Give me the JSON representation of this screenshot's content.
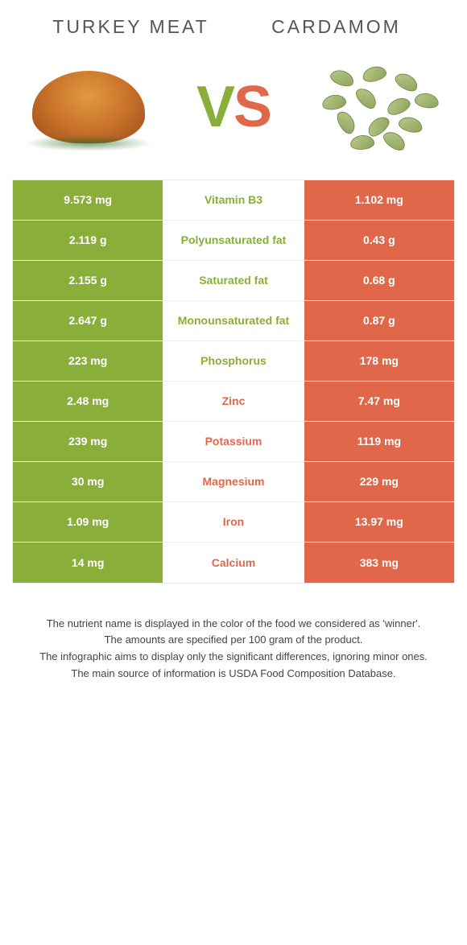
{
  "titles": {
    "left": "TURKEY MEAT",
    "right": "CARDAMOM"
  },
  "vs": {
    "v": "V",
    "s": "S"
  },
  "colors": {
    "left": "#8aae3a",
    "right": "#e1674a",
    "row_border": "#f0f0f0",
    "background": "#ffffff"
  },
  "rows": [
    {
      "left": "9.573 mg",
      "label": "Vitamin B3",
      "right": "1.102 mg",
      "winner": "left"
    },
    {
      "left": "2.119 g",
      "label": "Polyunsaturated fat",
      "right": "0.43 g",
      "winner": "left"
    },
    {
      "left": "2.155 g",
      "label": "Saturated fat",
      "right": "0.68 g",
      "winner": "left"
    },
    {
      "left": "2.647 g",
      "label": "Monounsaturated fat",
      "right": "0.87 g",
      "winner": "left"
    },
    {
      "left": "223 mg",
      "label": "Phosphorus",
      "right": "178 mg",
      "winner": "left"
    },
    {
      "left": "2.48 mg",
      "label": "Zinc",
      "right": "7.47 mg",
      "winner": "right"
    },
    {
      "left": "239 mg",
      "label": "Potassium",
      "right": "1119 mg",
      "winner": "right"
    },
    {
      "left": "30 mg",
      "label": "Magnesium",
      "right": "229 mg",
      "winner": "right"
    },
    {
      "left": "1.09 mg",
      "label": "Iron",
      "right": "13.97 mg",
      "winner": "right"
    },
    {
      "left": "14 mg",
      "label": "Calcium",
      "right": "383 mg",
      "winner": "right"
    }
  ],
  "notes": [
    "The nutrient name is displayed in the color of the food we considered as 'winner'.",
    "The amounts are specified per 100 gram of the product.",
    "The infographic aims to display only the significant differences, ignoring minor ones.",
    "The main source of information is USDA Food Composition Database."
  ]
}
